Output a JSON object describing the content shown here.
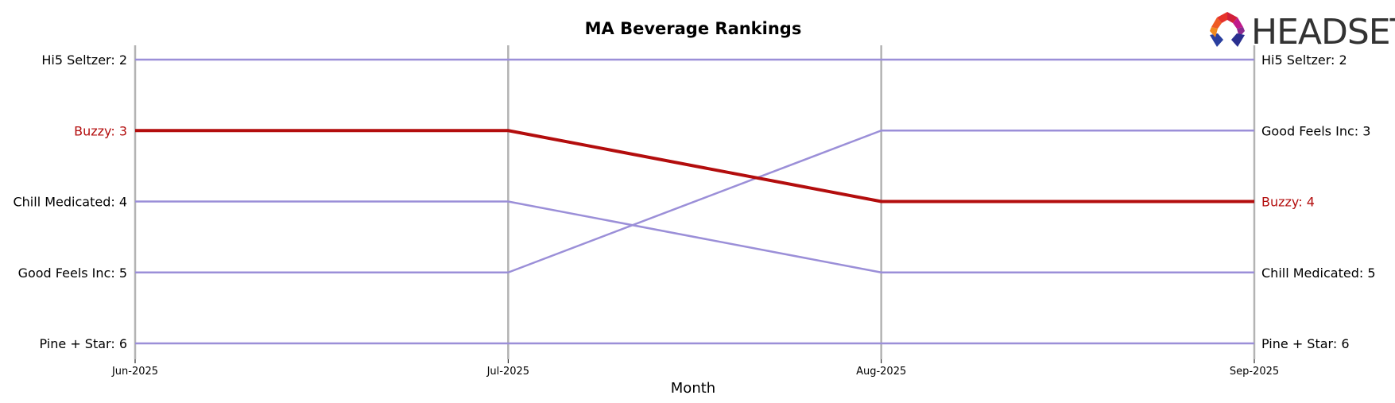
{
  "chart_data": {
    "type": "line",
    "title": "MA Beverage Rankings",
    "xlabel": "Month",
    "ylabel": "",
    "x": [
      "Jun-2025",
      "Jul-2025",
      "Aug-2025",
      "Sep-2025"
    ],
    "ylim": [
      6,
      2
    ],
    "y_inverted": true,
    "grid": false,
    "series": [
      {
        "name": "Hi5 Seltzer",
        "values": [
          2,
          2,
          2,
          2
        ],
        "color": "#9b8fd8",
        "highlight": false
      },
      {
        "name": "Buzzy",
        "values": [
          3,
          3,
          4,
          4
        ],
        "color": "#b30d0d",
        "highlight": true
      },
      {
        "name": "Chill Medicated",
        "values": [
          4,
          4,
          5,
          5
        ],
        "color": "#9b8fd8",
        "highlight": false
      },
      {
        "name": "Good Feels Inc",
        "values": [
          5,
          5,
          3,
          3
        ],
        "color": "#9b8fd8",
        "highlight": false
      },
      {
        "name": "Pine + Star",
        "values": [
          6,
          6,
          6,
          6
        ],
        "color": "#9b8fd8",
        "highlight": false
      }
    ]
  },
  "logo": {
    "text": "HEADSET"
  },
  "colors": {
    "highlight": "#b30d0d",
    "other": "#9b8fd8",
    "vertical_lines": "#b3b3b3"
  }
}
